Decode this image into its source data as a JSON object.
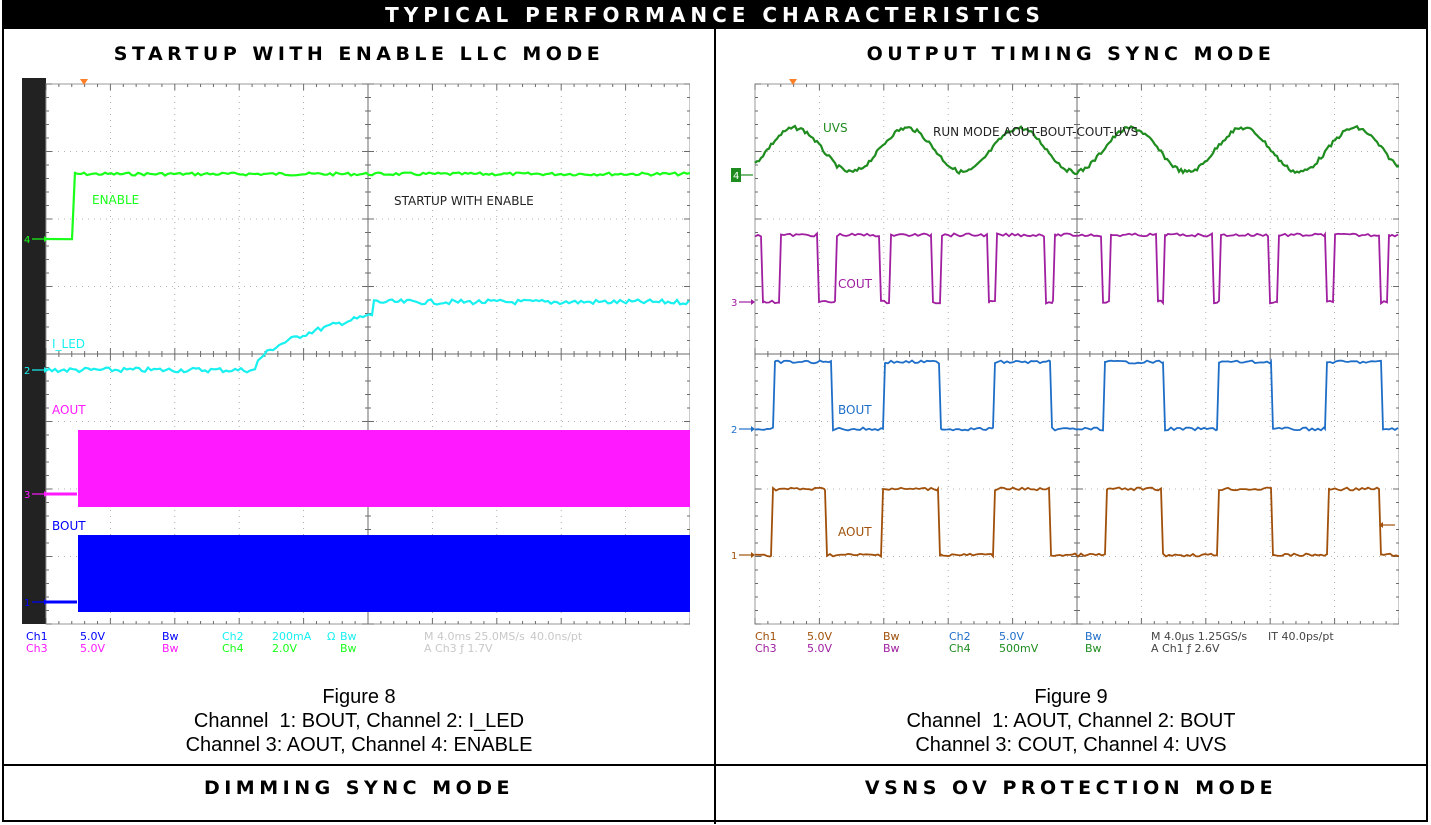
{
  "banner": "TYPICAL PERFORMANCE CHARACTERISTICS",
  "panels": {
    "left_heading": "STARTUP WITH ENABLE LLC MODE",
    "right_heading": "OUTPUT TIMING SYNC MODE",
    "bottom_left_heading": "DIMMING SYNC MODE",
    "bottom_right_heading": "VSNS OV PROTECTION MODE"
  },
  "fig8": {
    "figure_label": "Figure 8",
    "caption_line1": "Channel  1: BOUT, Channel 2: I_LED",
    "caption_line2": "Channel 3: AOUT, Channel 4: ENABLE",
    "scope_title": "STARTUP WITH ENABLE",
    "labels": {
      "ch4": "ENABLE",
      "ch2": "I_LED",
      "ch3": "AOUT",
      "ch1": "BOUT"
    },
    "colors": {
      "ch1": "#0000ff",
      "ch2": "#19f0f0",
      "ch3": "#ff19ff",
      "ch4": "#19ff19",
      "grid": "#9a9a9a",
      "ticks": "#6b6b6b",
      "side": "#222222"
    },
    "markers": {
      "ch4": "4",
      "ch2": "2",
      "ch3": "3",
      "ch1": "1"
    },
    "readout": {
      "r1": [
        "Ch1",
        "5.0V",
        "Bw",
        "Ch2",
        "200mA",
        "Ω",
        "Bw",
        "M 4.0ms 25.0MS/s",
        "40.0ns/pt"
      ],
      "r2": [
        "Ch3",
        "5.0V",
        "Bw",
        "Ch4",
        "2.0V",
        "Bw",
        "A  Ch3  ƒ  1.7V"
      ]
    }
  },
  "fig9": {
    "figure_label": "Figure 9",
    "caption_line1": "Channel  1: AOUT, Channel 2: BOUT",
    "caption_line2": "Channel 3: COUT, Channel 4: UVS",
    "scope_title": "RUN MODE AOUT-BOUT-COUT-UVS",
    "labels": {
      "ch4": "UVS",
      "ch3": "COUT",
      "ch2": "BOUT",
      "ch1": "AOUT"
    },
    "colors": {
      "ch1": "#a0500a",
      "ch2": "#1e6ec8",
      "ch3": "#a01ea0",
      "ch4": "#1e8c1e",
      "grid": "#9a9a9a",
      "ticks": "#6b6b6b"
    },
    "markers": {
      "ch4": "4",
      "ch3": "3",
      "ch2": "2",
      "ch1": "1"
    },
    "readout": {
      "r1": [
        "Ch1",
        "5.0V",
        "Bw",
        "Ch2",
        "5.0V",
        "Bw",
        "M 4.0µs 1.25GS/s",
        "IT 40.0ps/pt"
      ],
      "r2": [
        "Ch3",
        "5.0V",
        "Bw",
        "Ch4",
        "500mV",
        "Bw",
        "A  Ch1  ƒ  2.6V"
      ]
    }
  }
}
